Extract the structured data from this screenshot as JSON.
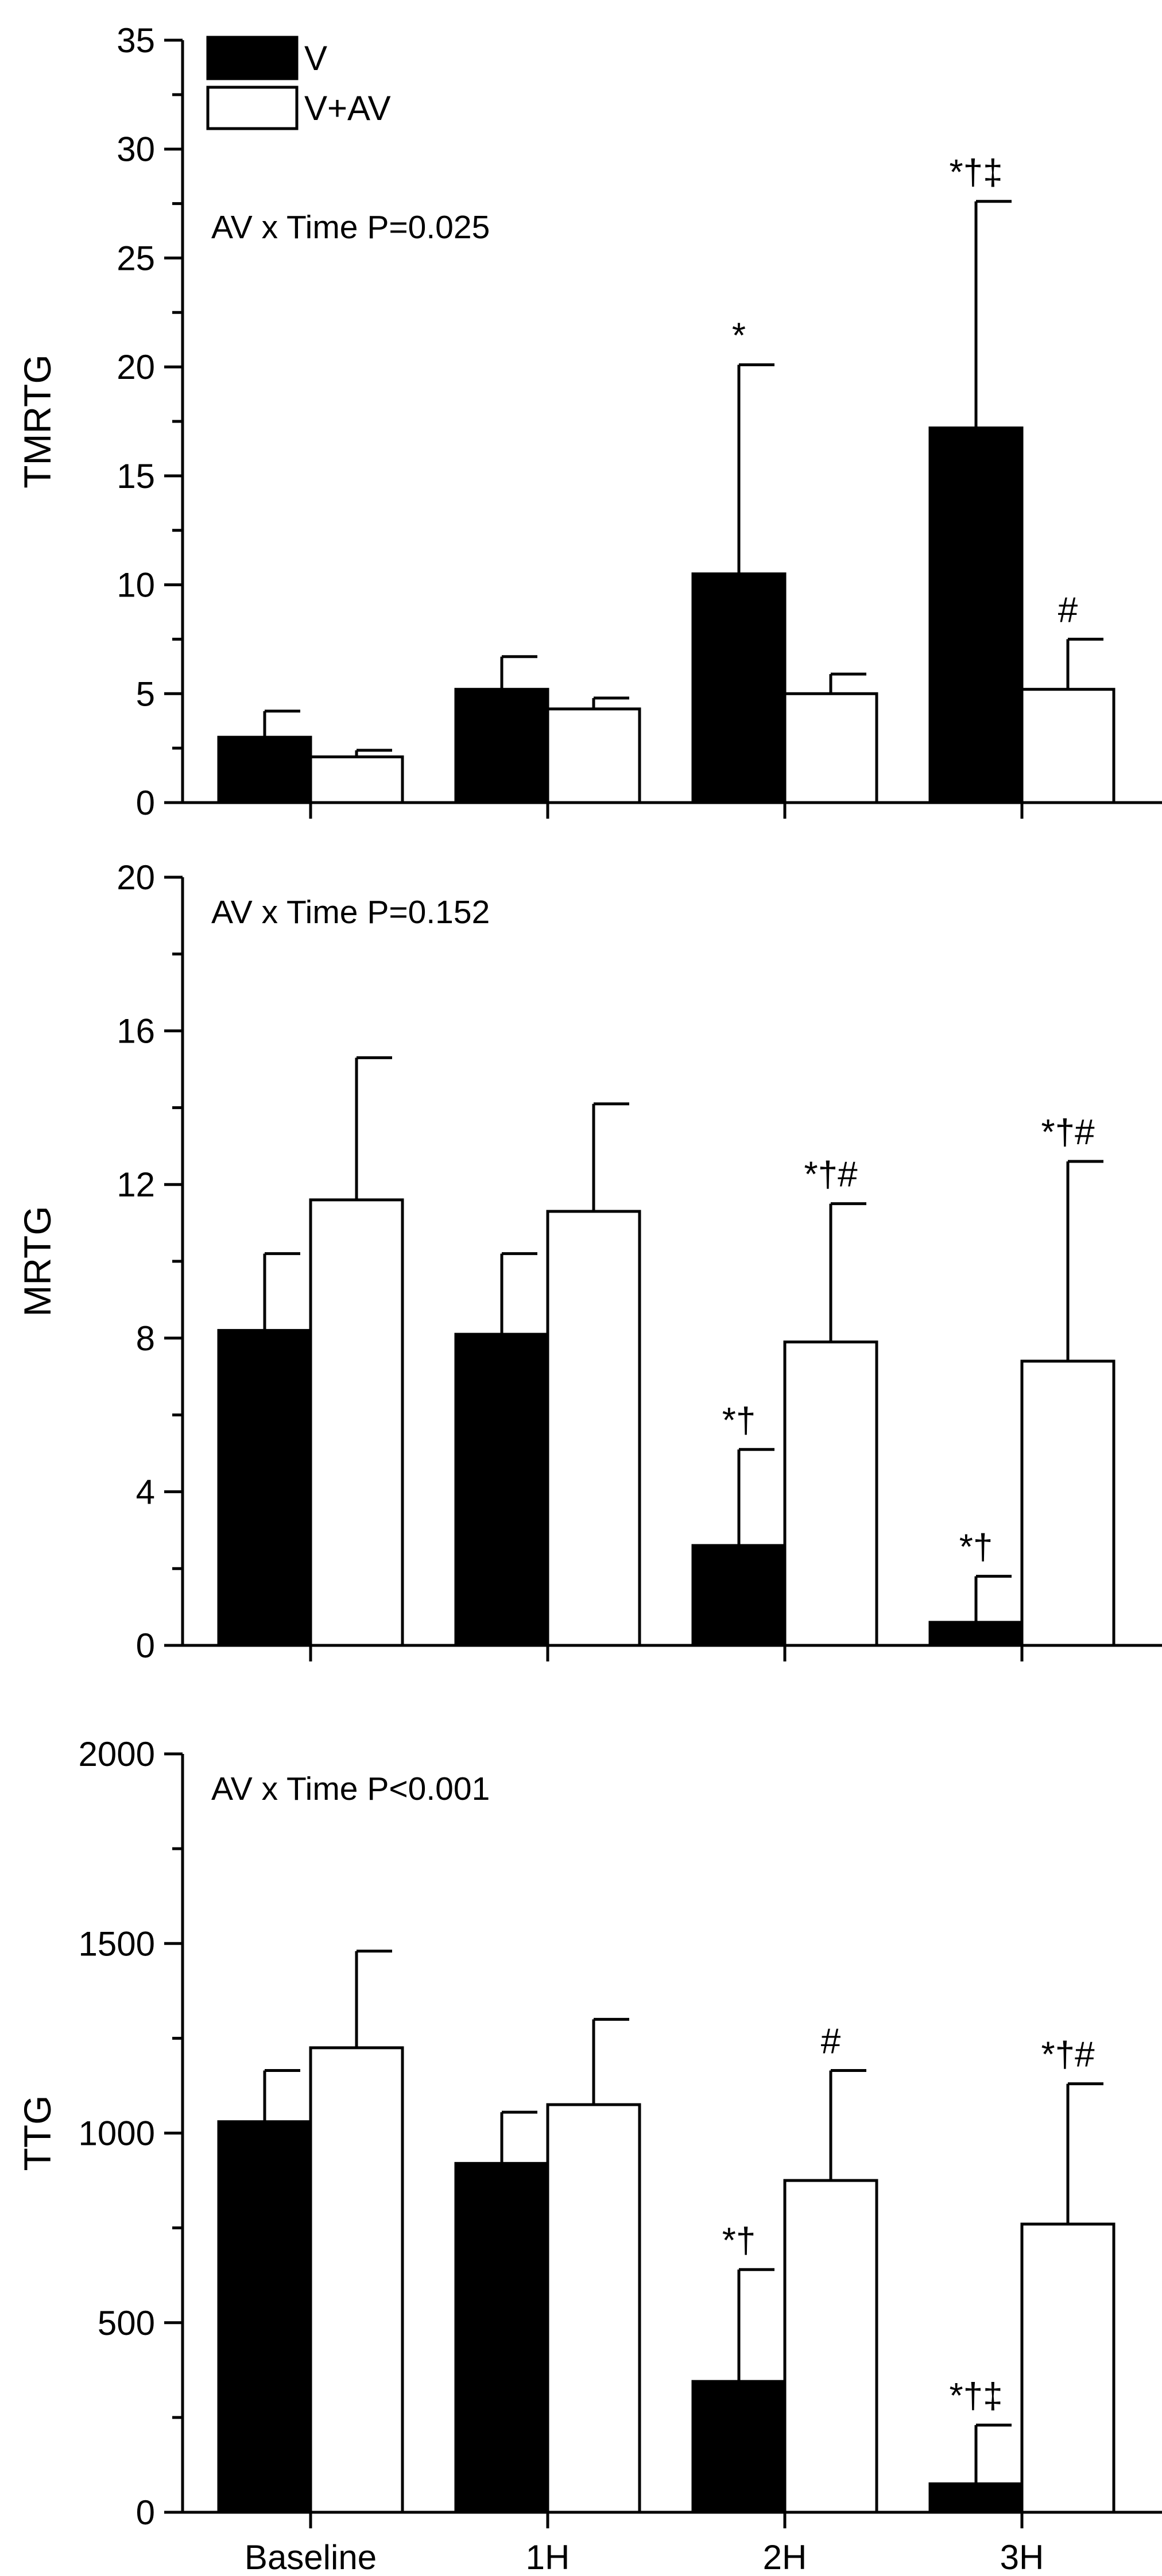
{
  "legend": {
    "items": [
      {
        "label": "V",
        "fill": "#000000"
      },
      {
        "label": "V+AV",
        "fill": "#ffffff"
      }
    ]
  },
  "categories": [
    "Baseline",
    "1H",
    "2H",
    "3H"
  ],
  "chart_data": [
    {
      "type": "bar",
      "title": "",
      "xlabel": "",
      "ylabel": "TMRTG",
      "annotation": "AV x Time P=0.025",
      "categories": [
        "Baseline",
        "1H",
        "2H",
        "3H"
      ],
      "ylim": [
        0,
        35
      ],
      "yticks": [
        0,
        5,
        10,
        15,
        20,
        25,
        30,
        35
      ],
      "minor_step": 2.5,
      "series": [
        {
          "name": "V",
          "values": [
            3.0,
            5.2,
            10.5,
            17.2
          ],
          "errors": [
            1.2,
            1.5,
            9.6,
            10.4
          ],
          "labels": [
            "",
            "",
            "*",
            "*†‡"
          ]
        },
        {
          "name": "V+AV",
          "values": [
            2.1,
            4.3,
            5.0,
            5.2
          ],
          "errors": [
            0.3,
            0.5,
            0.9,
            2.3
          ],
          "labels": [
            "",
            "",
            "",
            "#"
          ]
        }
      ]
    },
    {
      "type": "bar",
      "title": "",
      "xlabel": "",
      "ylabel": "MRTG",
      "annotation": "AV x Time P=0.152",
      "categories": [
        "Baseline",
        "1H",
        "2H",
        "3H"
      ],
      "ylim": [
        0,
        20
      ],
      "yticks": [
        0,
        4,
        8,
        12,
        16,
        20
      ],
      "minor_step": 2,
      "series": [
        {
          "name": "V",
          "values": [
            8.2,
            8.1,
            2.6,
            0.6
          ],
          "errors": [
            2.0,
            2.1,
            2.5,
            1.2
          ],
          "labels": [
            "",
            "",
            "*†",
            "*†"
          ]
        },
        {
          "name": "V+AV",
          "values": [
            11.6,
            11.3,
            7.9,
            7.4
          ],
          "errors": [
            3.7,
            2.8,
            3.6,
            5.2
          ],
          "labels": [
            "",
            "",
            "*†#",
            "*†#"
          ]
        }
      ]
    },
    {
      "type": "bar",
      "title": "",
      "xlabel": "",
      "ylabel": "TTG",
      "annotation": "AV x Time P<0.001",
      "categories": [
        "Baseline",
        "1H",
        "2H",
        "3H"
      ],
      "ylim": [
        0,
        2000
      ],
      "yticks": [
        0,
        500,
        1000,
        1500,
        2000
      ],
      "minor_step": 250,
      "series": [
        {
          "name": "V",
          "values": [
            1030,
            920,
            345,
            75
          ],
          "errors": [
            135,
            135,
            295,
            155
          ],
          "labels": [
            "",
            "",
            "*†",
            "*†‡"
          ]
        },
        {
          "name": "V+AV",
          "values": [
            1225,
            1075,
            875,
            760
          ],
          "errors": [
            255,
            225,
            290,
            370
          ],
          "labels": [
            "",
            "",
            "#",
            "*†#"
          ]
        }
      ]
    }
  ]
}
